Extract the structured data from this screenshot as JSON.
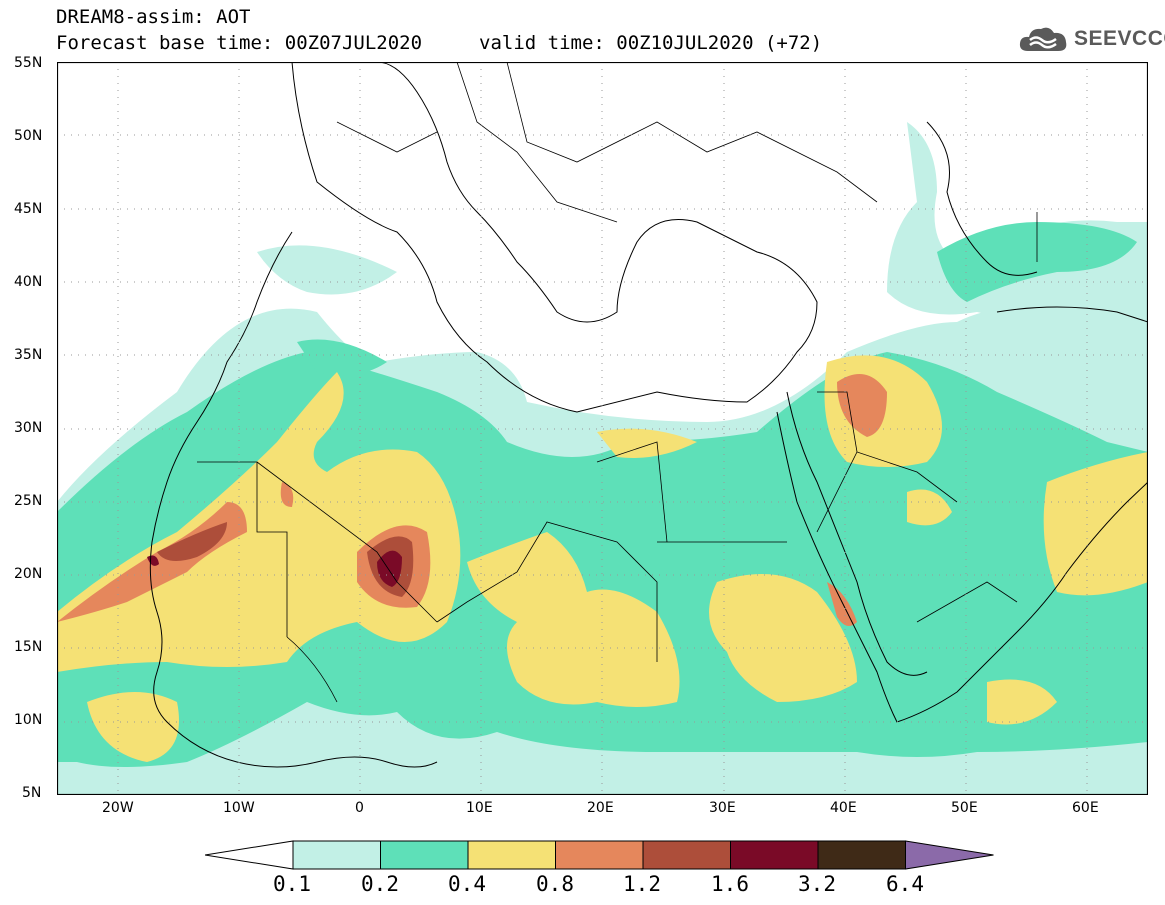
{
  "header": {
    "line1": "DREAM8-assim: AOT",
    "base": "Forecast base time: 00Z07JUL2020",
    "valid": "valid time: 00Z10JUL2020 (+72)"
  },
  "logo": {
    "text": "SEEVCCC",
    "icon": "cloud-icon"
  },
  "map": {
    "lon_range": [
      -25,
      65
    ],
    "lat_range": [
      5,
      55
    ],
    "lat_labels": [
      "55N",
      "50N",
      "45N",
      "40N",
      "35N",
      "30N",
      "25N",
      "20N",
      "15N",
      "10N",
      "5N"
    ],
    "lon_labels": [
      "20W",
      "10W",
      "0",
      "10E",
      "20E",
      "30E",
      "40E",
      "50E",
      "60E"
    ]
  },
  "legend": {
    "levels": [
      "0.1",
      "0.2",
      "0.4",
      "0.8",
      "1.2",
      "1.6",
      "3.2",
      "6.4"
    ],
    "colors": [
      "#ffffff",
      "#c2f0e6",
      "#5ee0b8",
      "#f5e175",
      "#e5875c",
      "#ad4e3a",
      "#7a0a27",
      "#3f2a17",
      "#8b6aa9"
    ]
  }
}
